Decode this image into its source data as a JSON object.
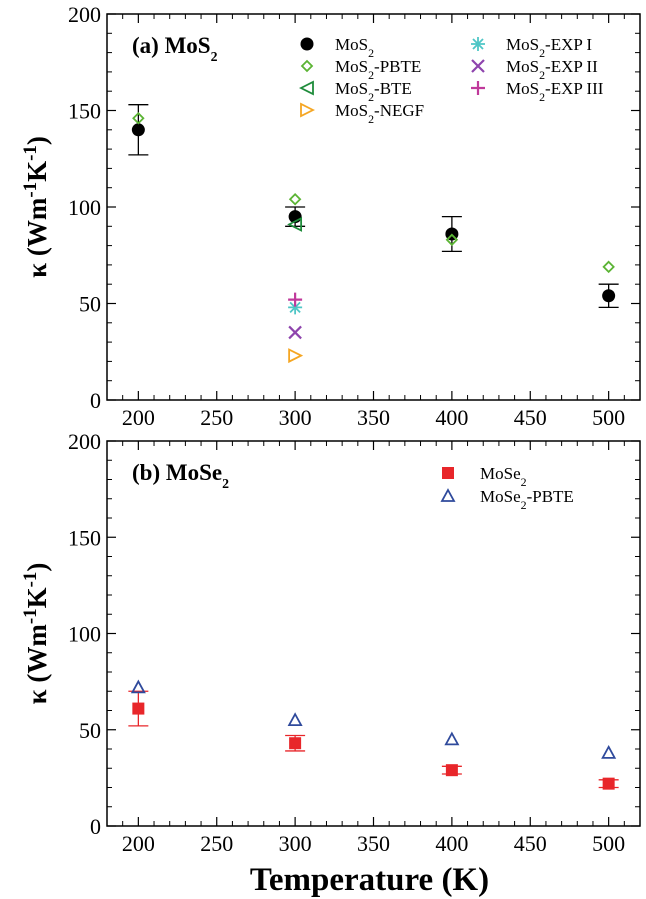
{
  "chart_data": [
    {
      "type": "scatter",
      "panel_label": "(a) MoS₂",
      "ylabel": "κ (Wm⁻¹K⁻¹)",
      "xlim": [
        180,
        520
      ],
      "ylim": [
        0,
        200
      ],
      "x_ticks": [
        200,
        250,
        300,
        350,
        400,
        450,
        500
      ],
      "y_ticks": [
        0,
        50,
        100,
        150,
        200
      ],
      "legend_position": "top",
      "series": [
        {
          "name": "MoS₂",
          "marker": "circle",
          "color": "#000000",
          "x": [
            200,
            300,
            400,
            500
          ],
          "y": [
            140,
            95,
            86,
            54
          ],
          "yerr": [
            13,
            5,
            9,
            6
          ]
        },
        {
          "name": "MoS₂-PBTE",
          "marker": "diamond",
          "color": "#5bb434",
          "x": [
            200,
            300,
            400,
            500
          ],
          "y": [
            146,
            104,
            83,
            69
          ]
        },
        {
          "name": "MoS₂-BTE",
          "marker": "triangle-left",
          "color": "#1f8c3b",
          "x": [
            300
          ],
          "y": [
            91
          ]
        },
        {
          "name": "MoS₂-NEGF",
          "marker": "triangle-right",
          "color": "#f5a623",
          "x": [
            300
          ],
          "y": [
            23
          ]
        },
        {
          "name": "MoS₂-EXP I",
          "marker": "asterisk",
          "color": "#4fc6c6",
          "x": [
            300
          ],
          "y": [
            48
          ]
        },
        {
          "name": "MoS₂-EXP II",
          "marker": "cross",
          "color": "#8e44ad",
          "x": [
            300
          ],
          "y": [
            35
          ]
        },
        {
          "name": "MoS₂-EXP III",
          "marker": "plus",
          "color": "#c0399b",
          "x": [
            300
          ],
          "y": [
            52
          ]
        }
      ]
    },
    {
      "type": "scatter",
      "panel_label": "(b) MoSe₂",
      "ylabel": "κ (Wm⁻¹K⁻¹)",
      "xlabel": "Temperature (K)",
      "xlim": [
        180,
        520
      ],
      "ylim": [
        0,
        200
      ],
      "x_ticks": [
        200,
        250,
        300,
        350,
        400,
        450,
        500
      ],
      "y_ticks": [
        0,
        50,
        100,
        150,
        200
      ],
      "legend_position": "top-right",
      "series": [
        {
          "name": "MoSe₂",
          "marker": "square",
          "color": "#e8262a",
          "x": [
            200,
            300,
            400,
            500
          ],
          "y": [
            61,
            43,
            29,
            22
          ],
          "yerr": [
            9,
            4,
            2,
            2
          ]
        },
        {
          "name": "MoSe₂-PBTE",
          "marker": "triangle-up",
          "color": "#2f4a9c",
          "x": [
            200,
            300,
            400,
            500
          ],
          "y": [
            72,
            55,
            45,
            38
          ]
        }
      ]
    }
  ]
}
